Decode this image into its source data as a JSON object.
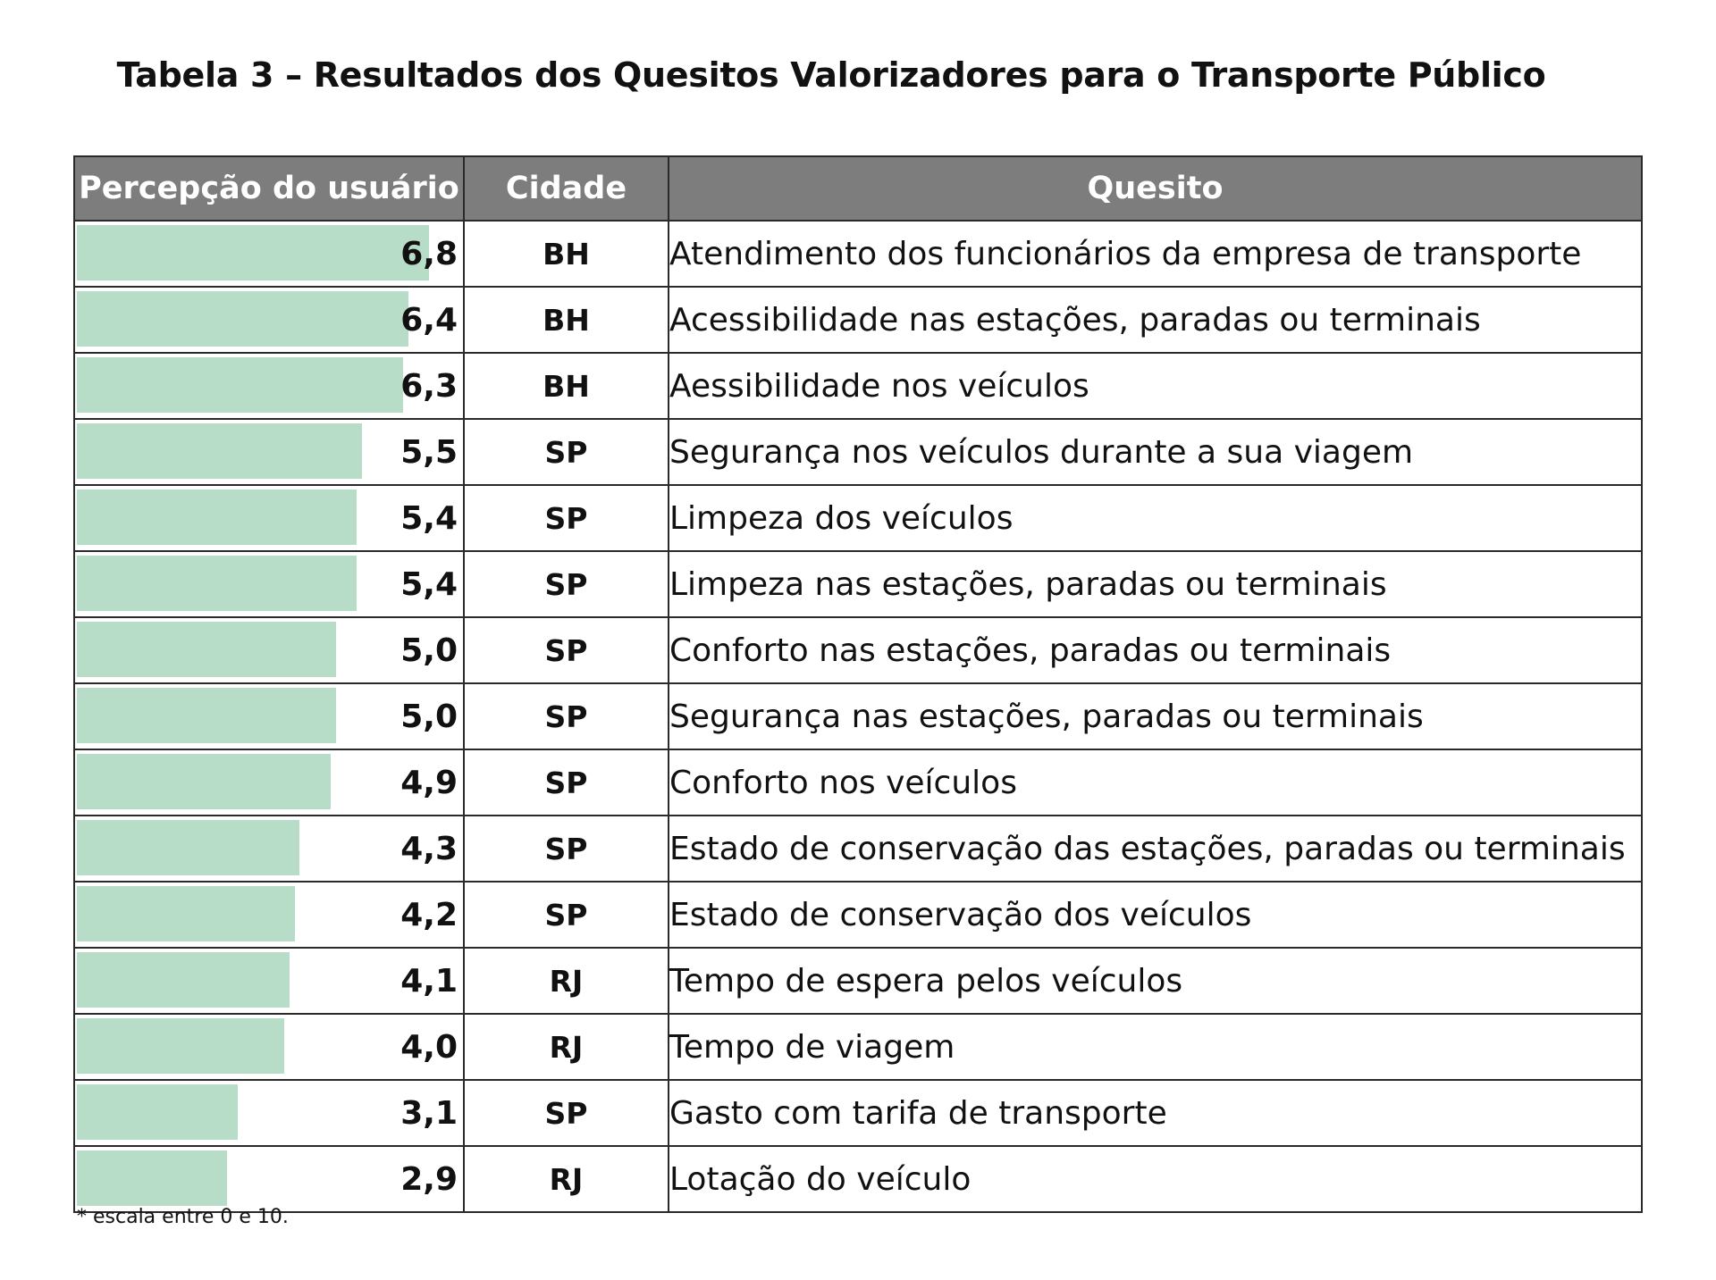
{
  "title": "Tabela 3 – Resultados dos Quesitos Valorizadores para o Transporte Público",
  "headers": {
    "perception": "Percepção do usuário",
    "city": "Cidade",
    "item": "Quesito"
  },
  "colors": {
    "header_bg": "#7d7d7d",
    "bar": "#b7dcc8",
    "border": "#2a2a2a"
  },
  "rows": [
    {
      "value": 6.8,
      "value_label": "6,8",
      "city": "BH",
      "item": "Atendimento dos funcionários da empresa de transporte"
    },
    {
      "value": 6.4,
      "value_label": "6,4",
      "city": "BH",
      "item": "Acessibilidade nas estações, paradas ou terminais"
    },
    {
      "value": 6.3,
      "value_label": "6,3",
      "city": "BH",
      "item": "Aessibilidade nos veículos"
    },
    {
      "value": 5.5,
      "value_label": "5,5",
      "city": "SP",
      "item": "Segurança nos veículos durante a sua viagem"
    },
    {
      "value": 5.4,
      "value_label": "5,4",
      "city": "SP",
      "item": "Limpeza dos veículos"
    },
    {
      "value": 5.4,
      "value_label": "5,4",
      "city": "SP",
      "item": "Limpeza nas estações, paradas ou terminais"
    },
    {
      "value": 5.0,
      "value_label": "5,0",
      "city": "SP",
      "item": "Conforto nas estações, paradas ou terminais"
    },
    {
      "value": 5.0,
      "value_label": "5,0",
      "city": "SP",
      "item": "Segurança nas estações, paradas ou terminais"
    },
    {
      "value": 4.9,
      "value_label": "4,9",
      "city": "SP",
      "item": "Conforto nos veículos"
    },
    {
      "value": 4.3,
      "value_label": "4,3",
      "city": "SP",
      "item": "Estado de conservação das estações, paradas ou terminais"
    },
    {
      "value": 4.2,
      "value_label": "4,2",
      "city": "SP",
      "item": "Estado de conservação dos veículos"
    },
    {
      "value": 4.1,
      "value_label": "4,1",
      "city": "RJ",
      "item": "Tempo de espera pelos veículos"
    },
    {
      "value": 4.0,
      "value_label": "4,0",
      "city": "RJ",
      "item": "Tempo de viagem"
    },
    {
      "value": 3.1,
      "value_label": "3,1",
      "city": "SP",
      "item": "Gasto com tarifa de transporte"
    },
    {
      "value": 2.9,
      "value_label": "2,9",
      "city": "RJ",
      "item": "Lotação do veículo"
    }
  ],
  "footnote": "* escala entre 0 e 10."
}
